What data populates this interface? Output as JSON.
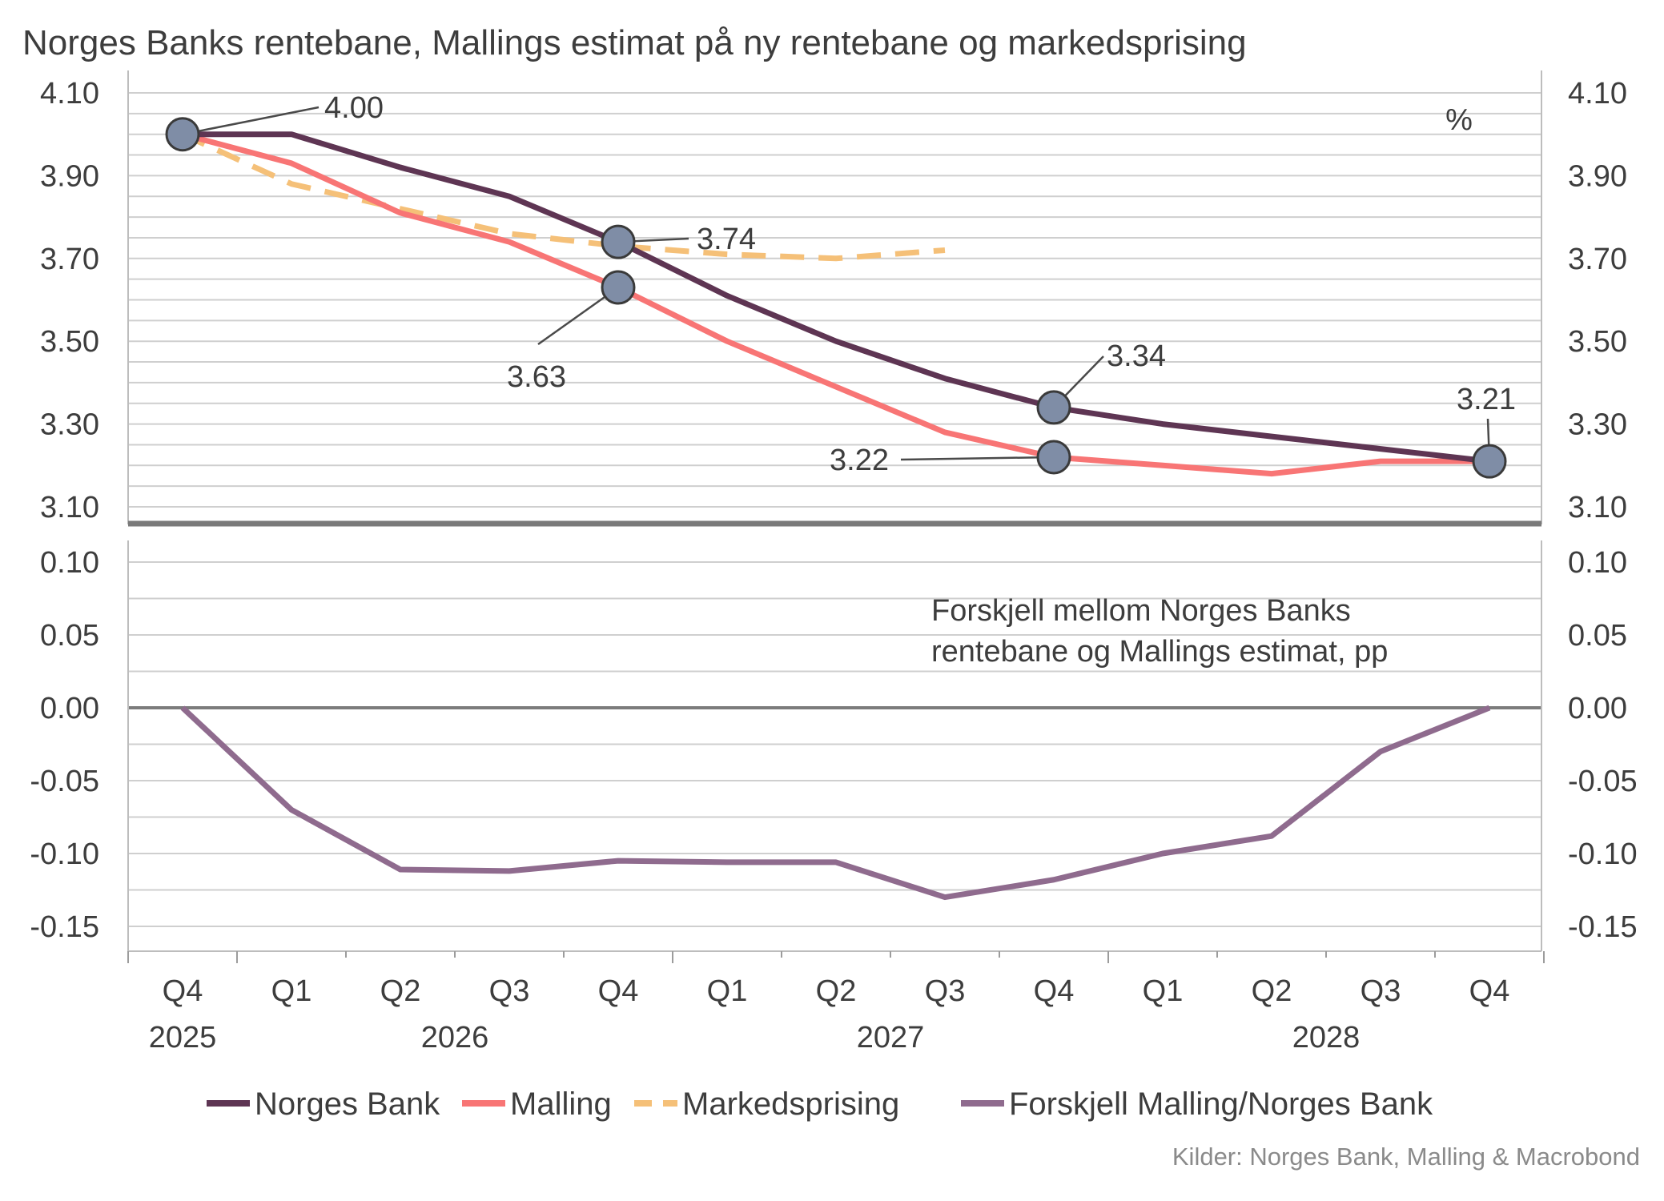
{
  "title": "Norges Banks rentebane, Mallings estimat på ny rentebane og markedsprising",
  "source": "Kilder: Norges Bank, Malling & Macrobond",
  "colors": {
    "norges_bank": "#5e3553",
    "malling": "#f87575",
    "markedsprising": "#f5c078",
    "forskjell": "#8f6b8e",
    "marker_fill": "#7f8da6",
    "marker_stroke": "#3a3a3a"
  },
  "chart_data": [
    {
      "type": "line",
      "panel": "top",
      "unit_label": "%",
      "ylim": [
        3.05,
        4.15
      ],
      "y_ticks": [
        "4.10",
        "3.90",
        "3.70",
        "3.50",
        "3.30",
        "3.10"
      ],
      "y_tick_values": [
        4.1,
        3.9,
        3.7,
        3.5,
        3.3,
        3.1
      ],
      "x_quarters": [
        "Q4",
        "Q1",
        "Q2",
        "Q3",
        "Q4",
        "Q1",
        "Q2",
        "Q3",
        "Q4",
        "Q1",
        "Q2",
        "Q3",
        "Q4"
      ],
      "x_years": [
        {
          "label": "2025",
          "q_index": 0
        },
        {
          "label": "2026",
          "q_index": 2.5
        },
        {
          "label": "2027",
          "q_index": 6.5
        },
        {
          "label": "2028",
          "q_index": 10.5
        }
      ],
      "series": [
        {
          "name": "Norges Bank",
          "style": "solid",
          "values": [
            4.0,
            4.0,
            3.92,
            3.85,
            3.74,
            3.61,
            3.5,
            3.41,
            3.34,
            3.3,
            3.27,
            3.24,
            3.21
          ]
        },
        {
          "name": "Malling",
          "style": "solid",
          "values": [
            4.0,
            3.93,
            3.81,
            3.74,
            3.63,
            3.5,
            3.39,
            3.28,
            3.22,
            3.2,
            3.18,
            3.21,
            3.21
          ]
        },
        {
          "name": "Markedsprising",
          "style": "dashed",
          "values": [
            4.0,
            3.88,
            3.82,
            3.76,
            3.73,
            3.71,
            3.7,
            3.72,
            null,
            null,
            null,
            null,
            null
          ]
        }
      ],
      "annotations": [
        {
          "label": "4.00",
          "q_index": 0,
          "value": 4.0
        },
        {
          "label": "3.74",
          "q_index": 4,
          "value": 3.74
        },
        {
          "label": "3.63",
          "q_index": 4,
          "value": 3.63
        },
        {
          "label": "3.34",
          "q_index": 8,
          "value": 3.34
        },
        {
          "label": "3.22",
          "q_index": 8,
          "value": 3.22
        },
        {
          "label": "3.21",
          "q_index": 12,
          "value": 3.21
        }
      ]
    },
    {
      "type": "line",
      "panel": "bottom",
      "ylim": [
        -0.165,
        0.12
      ],
      "y_ticks": [
        "0.10",
        "0.05",
        "0.00",
        "-0.05",
        "-0.10",
        "-0.15"
      ],
      "y_tick_values": [
        0.1,
        0.05,
        0.0,
        -0.05,
        -0.1,
        -0.15
      ],
      "panel_text": [
        "Forskjell mellom Norges Banks",
        "rentebane og Mallings estimat, pp"
      ],
      "series": [
        {
          "name": "Forskjell Malling/Norges Bank",
          "style": "solid",
          "values": [
            0.0,
            -0.07,
            -0.111,
            -0.112,
            -0.105,
            -0.106,
            -0.106,
            -0.13,
            -0.118,
            -0.1,
            -0.088,
            -0.03,
            0.0
          ]
        }
      ]
    }
  ],
  "legend": [
    {
      "name": "Norges Bank",
      "style": "solid",
      "color_key": "norges_bank"
    },
    {
      "name": "Malling",
      "style": "solid",
      "color_key": "malling"
    },
    {
      "name": "Markedsprising",
      "style": "dashed",
      "color_key": "markedsprising"
    },
    {
      "name": "Forskjell Malling/Norges Bank",
      "style": "solid",
      "color_key": "forskjell"
    }
  ]
}
